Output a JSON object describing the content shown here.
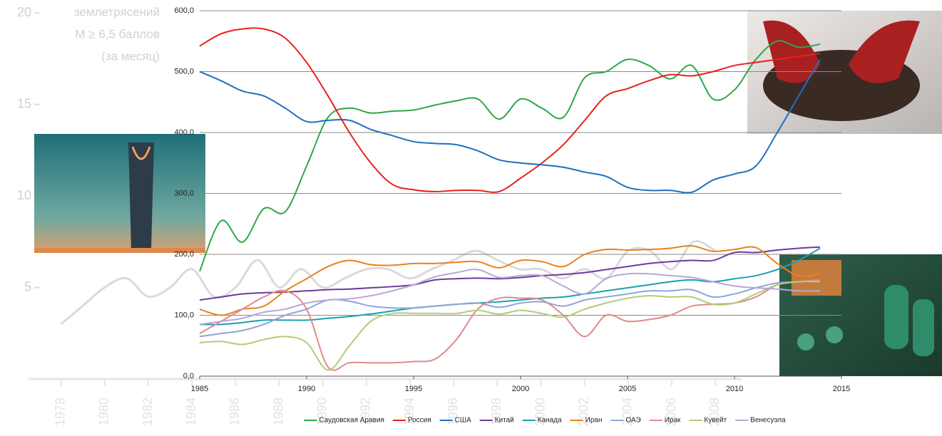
{
  "chart_data": [
    {
      "type": "line",
      "y_label": [
        "землетрясений",
        "M ≥ 6,5 баллов",
        "(за месяц)"
      ],
      "x": [
        1978,
        1979,
        1980,
        1981,
        1982,
        1983,
        1984,
        1985,
        1986,
        1987,
        1988,
        1989,
        1990,
        1991,
        1992,
        1993,
        1994,
        1995,
        1996,
        1997,
        1998,
        1999,
        2000,
        2001,
        2002,
        2003,
        2004,
        2005,
        2006,
        2007,
        2008
      ],
      "series": [
        {
          "color": "#d6d6d6",
          "values": [
            3,
            4,
            5,
            5.5,
            4.5,
            5,
            6,
            4.5,
            5,
            6.5,
            5,
            6,
            5,
            5.5,
            6,
            6,
            5.5,
            6,
            6.5,
            7,
            6.5,
            6,
            6,
            5.5,
            6,
            5.5,
            7,
            7,
            6,
            7.5,
            7
          ]
        }
      ],
      "xlim": [
        1975.2,
        2009.2
      ],
      "ylim": [
        0,
        20
      ],
      "yticks": [
        5,
        10,
        15,
        20
      ],
      "xticks": [
        1978,
        1980,
        1982,
        1984,
        1986,
        1988,
        1990,
        1992,
        1994,
        1996,
        1998,
        2000,
        2002,
        2004,
        2006,
        2008
      ]
    },
    {
      "type": "line",
      "x": [
        1985,
        1986,
        1987,
        1988,
        1989,
        1990,
        1991,
        1992,
        1993,
        1994,
        1995,
        1996,
        1997,
        1998,
        1999,
        2000,
        2001,
        2002,
        2003,
        2004,
        2005,
        2006,
        2007,
        2008,
        2009,
        2010,
        2011,
        2012,
        2013,
        2014
      ],
      "series": [
        {
          "name": "Саудовская Аравия",
          "color": "#2ea84a",
          "values": [
            172,
            255,
            220,
            275,
            270,
            345,
            425,
            440,
            432,
            435,
            437,
            445,
            452,
            455,
            422,
            455,
            440,
            425,
            490,
            500,
            520,
            510,
            488,
            510,
            455,
            470,
            520,
            550,
            540,
            545
          ]
        },
        {
          "name": "Россия",
          "color": "#e8201d",
          "values": [
            542,
            562,
            570,
            570,
            555,
            515,
            460,
            400,
            350,
            315,
            306,
            303,
            305,
            305,
            303,
            325,
            350,
            380,
            420,
            460,
            472,
            485,
            495,
            493,
            500,
            510,
            515,
            520,
            525,
            530
          ]
        },
        {
          "name": "США",
          "color": "#1f6fc1",
          "values": [
            500,
            485,
            468,
            460,
            440,
            418,
            420,
            420,
            405,
            395,
            385,
            382,
            380,
            370,
            355,
            350,
            347,
            343,
            335,
            328,
            310,
            305,
            305,
            302,
            322,
            332,
            345,
            400,
            460,
            520
          ]
        },
        {
          "name": "Китай",
          "color": "#6a3d9a",
          "values": [
            125,
            130,
            135,
            137,
            138,
            140,
            142,
            143,
            145,
            147,
            150,
            158,
            160,
            161,
            160,
            162,
            165,
            167,
            170,
            175,
            180,
            185,
            188,
            190,
            190,
            203,
            203,
            207,
            210,
            212
          ]
        },
        {
          "name": "Канада",
          "color": "#1ba0b0",
          "values": [
            85,
            85,
            88,
            92,
            92,
            92,
            95,
            98,
            102,
            107,
            112,
            115,
            118,
            120,
            122,
            125,
            128,
            130,
            135,
            140,
            145,
            150,
            155,
            158,
            155,
            160,
            165,
            175,
            190,
            210
          ]
        },
        {
          "name": "Иран",
          "color": "#e8821e",
          "values": [
            110,
            100,
            110,
            115,
            140,
            160,
            180,
            190,
            183,
            182,
            185,
            185,
            187,
            188,
            178,
            190,
            188,
            180,
            200,
            208,
            207,
            208,
            210,
            214,
            205,
            208,
            211,
            185,
            165,
            168
          ]
        },
        {
          "name": "ОАЭ",
          "color": "#8fa6d8",
          "values": [
            65,
            70,
            75,
            85,
            100,
            110,
            125,
            123,
            115,
            112,
            112,
            115,
            118,
            120,
            113,
            120,
            122,
            115,
            125,
            130,
            135,
            140,
            140,
            142,
            130,
            135,
            145,
            153,
            155,
            158
          ]
        },
        {
          "name": "Ирак",
          "color": "#e08a8a",
          "values": [
            70,
            90,
            110,
            130,
            140,
            110,
            15,
            22,
            22,
            22,
            24,
            28,
            60,
            110,
            128,
            128,
            125,
            100,
            65,
            100,
            90,
            93,
            100,
            115,
            118,
            120,
            130,
            150,
            155,
            158
          ]
        },
        {
          "name": "Кувейт",
          "color": "#b0cc78",
          "values": [
            55,
            57,
            52,
            60,
            65,
            55,
            10,
            50,
            90,
            103,
            103,
            103,
            103,
            108,
            102,
            108,
            103,
            97,
            110,
            120,
            128,
            132,
            130,
            130,
            118,
            120,
            135,
            150,
            155,
            155
          ]
        },
        {
          "name": "Венесуэла",
          "color": "#b9a6d8",
          "values": [
            85,
            90,
            95,
            105,
            110,
            120,
            125,
            127,
            132,
            140,
            150,
            163,
            170,
            175,
            162,
            165,
            165,
            148,
            135,
            160,
            168,
            168,
            165,
            162,
            155,
            148,
            145,
            143,
            140,
            140
          ]
        }
      ],
      "xlim": [
        1985,
        2015
      ],
      "xticks": [
        1985,
        1990,
        1995,
        2000,
        2005,
        2010,
        2015
      ],
      "ylim": [
        0,
        600
      ],
      "yticks": [
        {
          "value": 0,
          "label": "0,0"
        },
        {
          "value": 100,
          "label": "100,0"
        },
        {
          "value": 200,
          "label": "200,0"
        },
        {
          "value": 300,
          "label": "300,0"
        },
        {
          "value": 400,
          "label": "400,0"
        },
        {
          "value": 500,
          "label": "500,0"
        },
        {
          "value": 600,
          "label": "600,0"
        }
      ],
      "grid": true,
      "legend": "bottom"
    }
  ]
}
